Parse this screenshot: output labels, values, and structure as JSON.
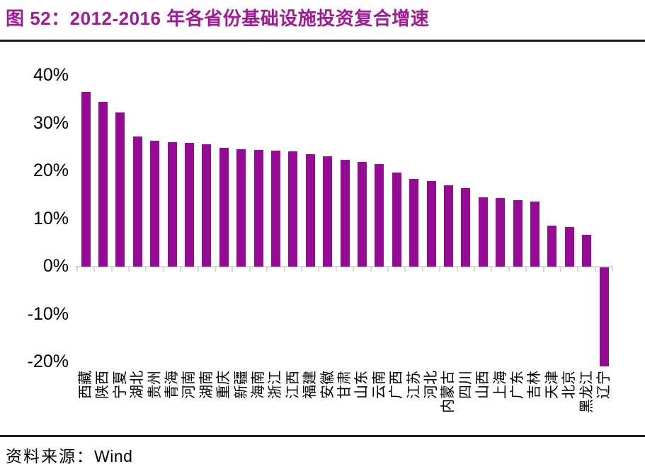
{
  "header": {
    "title": "图 52：2012-2016 年各省份基础设施投资复合增速"
  },
  "footer": {
    "source_label": "资料来源：",
    "source_value": "Wind"
  },
  "colors": {
    "title_accent": "#A01A96",
    "bar": "#960B96",
    "axis_line": "#D9D9D9",
    "rule": "#1A1A1A",
    "text": "#000000"
  },
  "chart_data": {
    "type": "bar",
    "title": "2012-2016 年各省份基础设施投资复合增速",
    "xlabel": "",
    "ylabel": "",
    "unit": "%",
    "grid": false,
    "legend_position": "none",
    "ylim": [
      -20,
      40
    ],
    "yticks": [
      40,
      30,
      20,
      10,
      0,
      -10,
      -20
    ],
    "ytick_labels": [
      "40%",
      "30%",
      "20%",
      "10%",
      "0%",
      "-10%",
      "-20%"
    ],
    "categories": [
      "西藏",
      "陕西",
      "宁夏",
      "湖北",
      "贵州",
      "青海",
      "河南",
      "湖南",
      "重庆",
      "新疆",
      "海南",
      "浙江",
      "江西",
      "福建",
      "安徽",
      "甘肃",
      "山东",
      "云南",
      "广西",
      "江苏",
      "河北",
      "内蒙古",
      "四川",
      "山西",
      "上海",
      "广东",
      "吉林",
      "天津",
      "北京",
      "黑龙江",
      "辽宁"
    ],
    "values": [
      36.6,
      34.5,
      32.3,
      27.2,
      26.3,
      26.1,
      25.9,
      25.7,
      24.9,
      24.6,
      24.4,
      24.3,
      24.2,
      23.6,
      23.1,
      22.3,
      21.9,
      21.5,
      19.7,
      18.4,
      17.9,
      17.0,
      16.4,
      14.5,
      14.3,
      13.9,
      13.6,
      8.6,
      8.3,
      6.7,
      -20.7
    ]
  }
}
